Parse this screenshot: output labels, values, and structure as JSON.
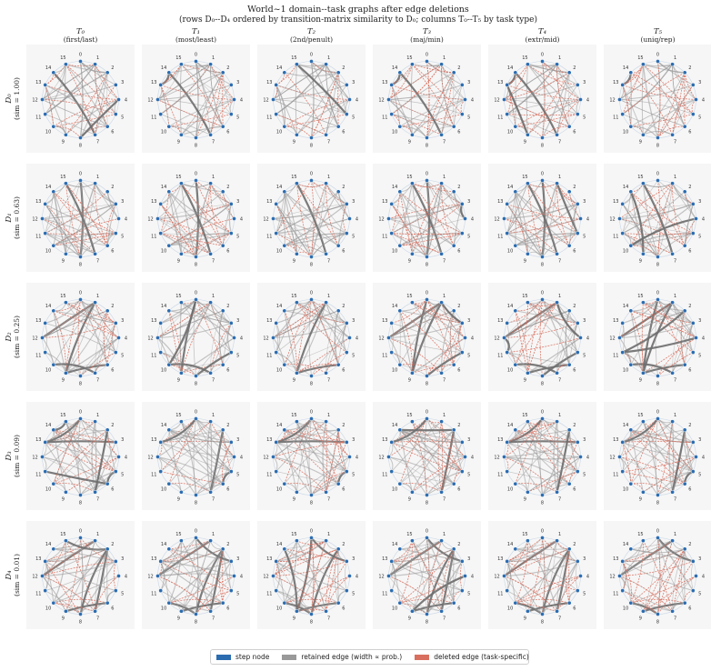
{
  "title": {
    "line1": "World~1 domain--task graphs after edge deletions",
    "line2": "(rows D₀--D₄ ordered by transition-matrix similarity to D₀;  columns T₀--T₅ by task type)"
  },
  "columns": [
    {
      "label": "T₀",
      "sub": "(first/last)"
    },
    {
      "label": "T₁",
      "sub": "(most/least)"
    },
    {
      "label": "T₂",
      "sub": "(2nd/penult)"
    },
    {
      "label": "T₃",
      "sub": "(maj/min)"
    },
    {
      "label": "T₄",
      "sub": "(extr/mid)"
    },
    {
      "label": "T₅",
      "sub": "(uniq/rep)"
    }
  ],
  "rows": [
    {
      "label": "D₀",
      "sim": "(sim = 1.00)"
    },
    {
      "label": "D₁",
      "sim": "(sim = 0.63)"
    },
    {
      "label": "D₂",
      "sim": "(sim = 0.25)"
    },
    {
      "label": "D₃",
      "sim": "(sim = 0.09)"
    },
    {
      "label": "D₄",
      "sim": "(sim = 0.01)"
    }
  ],
  "node_labels": [
    "0",
    "1",
    "2",
    "3",
    "4",
    "5",
    "6",
    "7",
    "8",
    "9",
    "10",
    "11",
    "12",
    "13",
    "14",
    "15"
  ],
  "legend": {
    "node": "step node",
    "retained": "retained edge (width ∝ prob.)",
    "deleted": "deleted edge (task-specific)"
  },
  "colors": {
    "node": "#2b6cb0",
    "retained": "#999999",
    "retained_strong": "#6e6e6e",
    "deleted": "#d9705f",
    "panel_bg": "#f6f6f6",
    "ring": "#c9d6e6"
  }
}
